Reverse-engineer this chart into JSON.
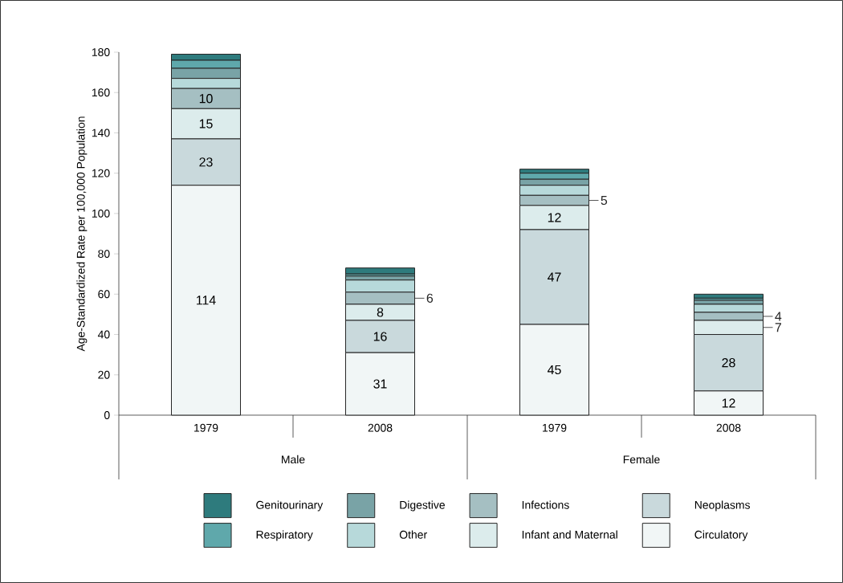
{
  "chart_data": {
    "type": "bar",
    "stacked": true,
    "ylabel": "Age-Standardized Rate per 100,000 Population",
    "categories": [
      "1979",
      "2008",
      "1979",
      "2008"
    ],
    "annotations": [
      "Male",
      "Female"
    ],
    "ylim": [
      0,
      180
    ],
    "yticks": [
      0,
      20,
      40,
      60,
      80,
      100,
      120,
      140,
      160,
      180
    ],
    "legend": "bottom",
    "series": [
      {
        "name": "Circulatory",
        "color": "#f1f6f6",
        "values": [
          114,
          31,
          45,
          12
        ],
        "value_labels": [
          "114",
          "31",
          "45",
          "12"
        ]
      },
      {
        "name": "Neoplasms",
        "color": "#c9d9dc",
        "values": [
          23,
          16,
          47,
          28
        ],
        "value_labels": [
          "23",
          "16",
          "47",
          "28"
        ]
      },
      {
        "name": "Infant and Maternal",
        "color": "#dcecec",
        "values": [
          15,
          8,
          12,
          7
        ],
        "value_labels": [
          "15",
          "8",
          "12",
          "7"
        ]
      },
      {
        "name": "Infections",
        "color": "#a5bfc2",
        "values": [
          10,
          6,
          5,
          4
        ],
        "value_labels": [
          "10",
          "6",
          "5",
          "4"
        ]
      },
      {
        "name": "Other",
        "color": "#b7d9da",
        "values": [
          5,
          6,
          5,
          4
        ]
      },
      {
        "name": "Digestive",
        "color": "#79a3a6",
        "values": [
          5,
          2,
          3,
          2
        ]
      },
      {
        "name": "Respiratory",
        "color": "#5fa8ab",
        "values": [
          4,
          1,
          3,
          1
        ]
      },
      {
        "name": "Genitourinary",
        "color": "#2e7b7d",
        "values": [
          3,
          3,
          2,
          2
        ]
      }
    ]
  }
}
